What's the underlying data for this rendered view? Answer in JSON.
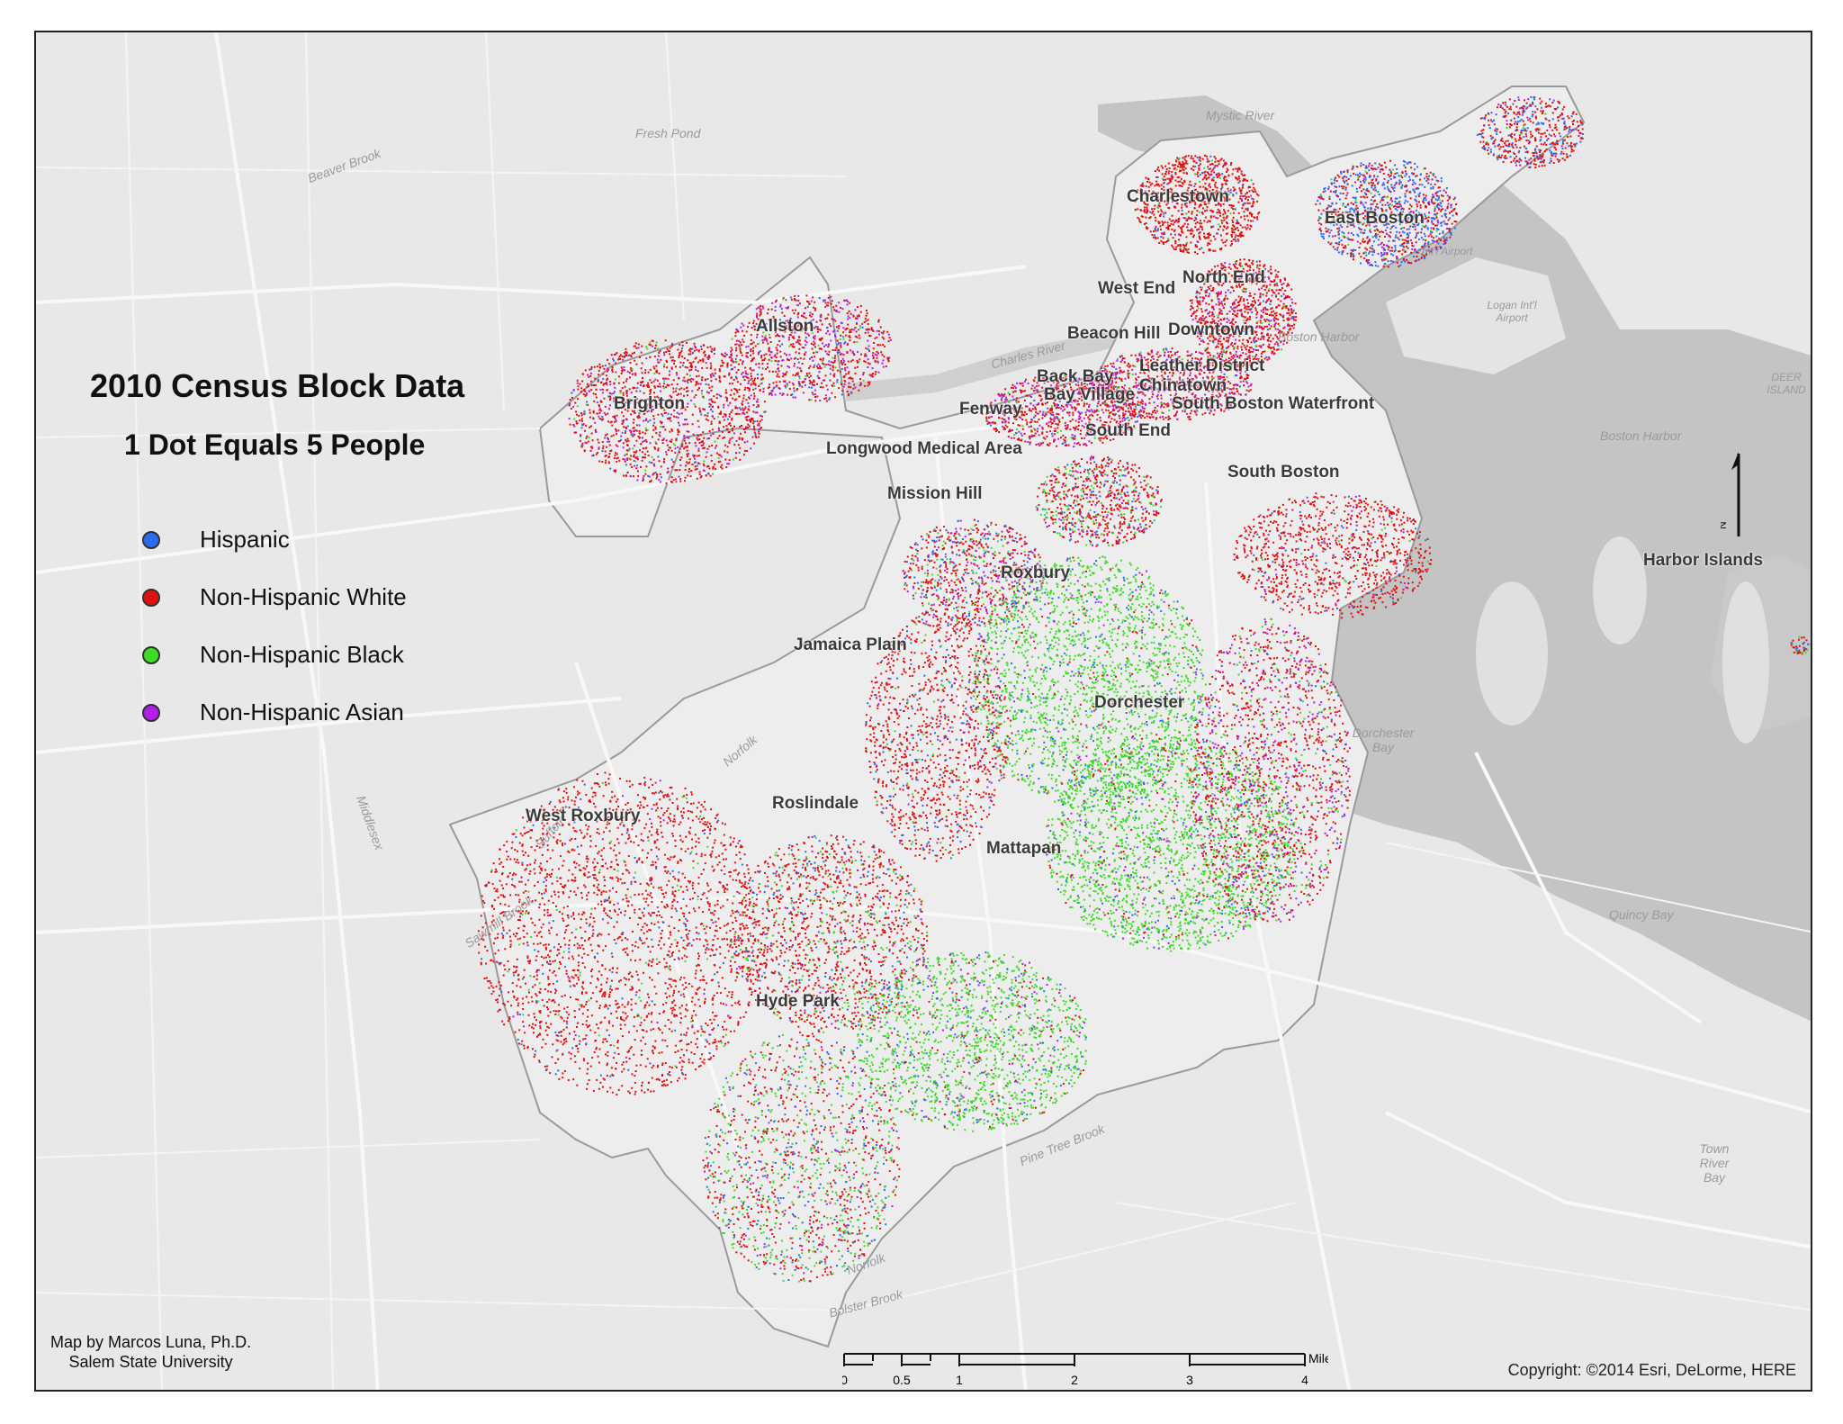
{
  "title": "2010 Census Block Data",
  "subtitle": "1 Dot Equals 5 People",
  "legend": [
    {
      "label": "Hispanic",
      "color": "#2a6cf0"
    },
    {
      "label": "Non-Hispanic White",
      "color": "#e01010"
    },
    {
      "label": "Non-Hispanic Black",
      "color": "#3ddc24"
    },
    {
      "label": "Non-Hispanic Asian",
      "color": "#b21ee6"
    }
  ],
  "neighborhoods": {
    "charlestown": "Charlestown",
    "east_boston": "East Boston",
    "north_end": "North End",
    "west_end": "West End",
    "allston": "Allston",
    "beacon_hill": "Beacon Hill",
    "downtown": "Downtown",
    "leather_district": "Leather District",
    "back_bay": "Back Bay",
    "chinatown": "Chinatown",
    "bay_village": "Bay Village",
    "brighton": "Brighton",
    "fenway": "Fenway",
    "south_boston_waterfront": "South Boston Waterfront",
    "south_end": "South End",
    "longwood": "Longwood Medical Area",
    "south_boston": "South Boston",
    "mission_hill": "Mission Hill",
    "roxbury": "Roxbury",
    "harbor_islands": "Harbor Islands",
    "jamaica_plain": "Jamaica Plain",
    "dorchester": "Dorchester",
    "west_roxbury": "West Roxbury",
    "roslindale": "Roslindale",
    "mattapan": "Mattapan",
    "hyde_park": "Hyde Park"
  },
  "water_labels": {
    "mystic_river": "Mystic River",
    "fresh_pond": "Fresh Pond",
    "beaver_brook": "Beaver Brook",
    "charles_river": "Charles River",
    "boston_harbor_1": "Boston Harbor",
    "boston_harbor_2": "Boston Harbor",
    "dorchester_bay": "Dorchester Bay",
    "quincy_bay": "Quincy Bay",
    "town_river_bay": "Town River Bay",
    "deer_island": "DEER ISLAND",
    "logan_airport_1": "Int'l Airport",
    "logan_airport_2": "Logan Int'l Airport",
    "pine_tree_brook": "Pine Tree Brook",
    "norfolk_1": "Norfolk",
    "norfolk_2": "Norfolk",
    "suffolk": "Suffolk",
    "middlesex": "Middlesex",
    "sawmill_brook": "Sawmill Brook",
    "bolster_brook": "Bolster Brook"
  },
  "scale_bar": {
    "unit": "Miles",
    "ticks": [
      "0",
      "0.5",
      "1",
      "2",
      "3",
      "4"
    ]
  },
  "credit": {
    "line1": "Map by Marcos Luna, Ph.D.",
    "line2": "Salem State University"
  },
  "copyright": "Copyright: ©2014 Esri, DeLorme, HERE"
}
